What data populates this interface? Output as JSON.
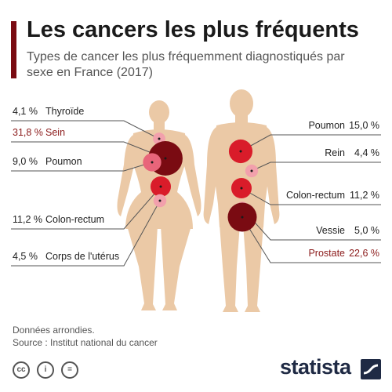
{
  "header": {
    "title": "Les cancers les plus fréquents",
    "subtitle": "Types de cancer les plus fréquemment diagnostiqués par sexe en France (2017)"
  },
  "colors": {
    "accent": "#7a0b12",
    "skin": "#ebc9a6",
    "line": "#555555",
    "dark_red": "#7a0b12",
    "red": "#d91c2a",
    "pink": "#e8657a",
    "light_pink": "#f2a0ac",
    "highlight_text": "#8b1a1a",
    "brand": "#1f2a44"
  },
  "chart_data": {
    "type": "bubble",
    "unit": "%",
    "series": [
      {
        "name": "Femmes",
        "points": [
          {
            "label": "Thyroïde",
            "value": 4.1,
            "display": "4,1 %"
          },
          {
            "label": "Sein",
            "value": 31.8,
            "display": "31,8 %"
          },
          {
            "label": "Poumon",
            "value": 9.0,
            "display": "9,0 %"
          },
          {
            "label": "Colon-rectum",
            "value": 11.2,
            "display": "11,2 %"
          },
          {
            "label": "Corps de l'utérus",
            "value": 4.5,
            "display": "4,5 %"
          }
        ]
      },
      {
        "name": "Hommes",
        "points": [
          {
            "label": "Poumon",
            "value": 15.0,
            "display": "15,0 %"
          },
          {
            "label": "Rein",
            "value": 4.4,
            "display": "4,4 %"
          },
          {
            "label": "Colon-rectum",
            "value": 11.2,
            "display": "11,2 %"
          },
          {
            "label": "Vessie",
            "value": 5.0,
            "display": "5,0 %"
          },
          {
            "label": "Prostate",
            "value": 22.6,
            "display": "22,6 %"
          }
        ]
      }
    ]
  },
  "footer": {
    "note": "Données arrondies.",
    "source": "Source : Institut national du cancer",
    "license_icons": [
      "cc",
      "i",
      "="
    ],
    "brand": "statista"
  }
}
